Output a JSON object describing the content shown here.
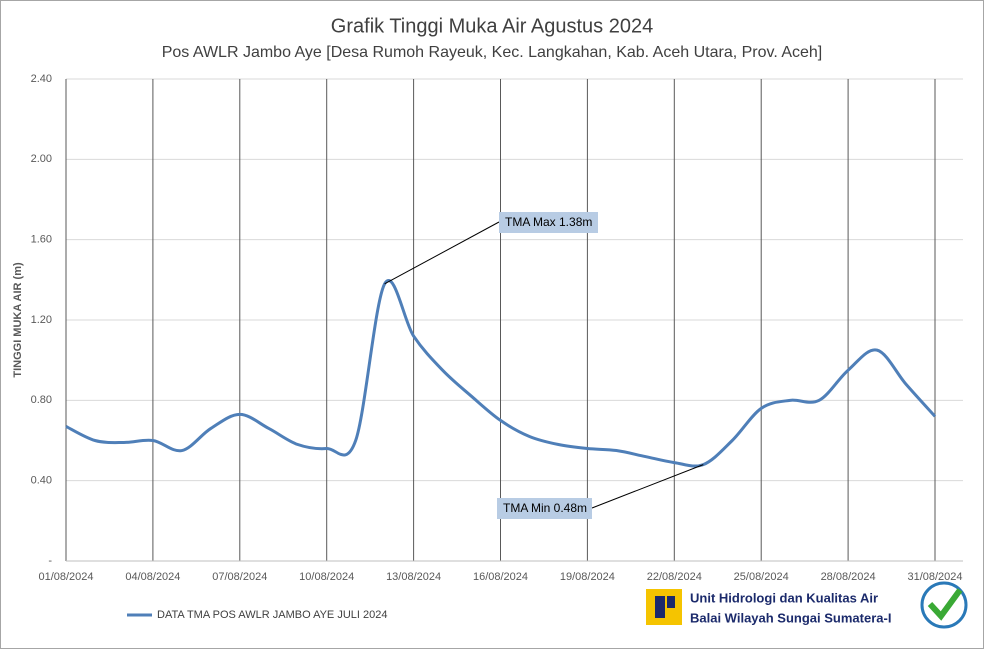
{
  "chart_data": {
    "type": "line",
    "title": "Grafik Tinggi Muka Air Agustus 2024",
    "subtitle": "Pos AWLR Jambo Aye [Desa Rumoh Rayeuk, Kec. Langkahan, Kab. Aceh Utara, Prov. Aceh]",
    "y_label": "TINGGI MUKA AIR (m)",
    "categories": [
      "01/08/2024",
      null,
      null,
      "04/08/2024",
      null,
      null,
      "07/08/2024",
      null,
      null,
      "10/08/2024",
      null,
      null,
      "13/08/2024",
      null,
      null,
      "16/08/2024",
      null,
      null,
      "19/08/2024",
      null,
      null,
      "22/08/2024",
      null,
      null,
      "25/08/2024",
      null,
      null,
      "28/08/2024",
      null,
      null,
      "31/08/2024"
    ],
    "series": [
      {
        "name": "DATA TMA POS AWLR JAMBO AYE JULI 2024",
        "color": "#4f7fb8",
        "values": [
          0.67,
          0.6,
          0.59,
          0.6,
          0.55,
          0.66,
          0.73,
          0.66,
          0.58,
          0.56,
          0.6,
          1.38,
          1.12,
          0.95,
          0.82,
          0.7,
          0.62,
          0.58,
          0.56,
          0.55,
          0.52,
          0.49,
          0.48,
          0.6,
          0.76,
          0.8,
          0.8,
          0.95,
          1.05,
          0.88,
          0.72
        ]
      }
    ],
    "ylim": [
      0,
      2.4
    ],
    "yticks": [
      {
        "value": 0,
        "label": "-"
      },
      {
        "value": 0.4,
        "label": "0.40"
      },
      {
        "value": 0.8,
        "label": "0.80"
      },
      {
        "value": 1.2,
        "label": "1.20"
      },
      {
        "value": 1.6,
        "label": "1.60"
      },
      {
        "value": 2.0,
        "label": "2.00"
      },
      {
        "value": 2.4,
        "label": "2.40"
      }
    ],
    "grid": true,
    "annotations": [
      "TMA Max 1.38m",
      "TMA Min 0.48m"
    ],
    "footer": [
      "Unit Hidrologi dan Kualitas Air",
      "Balai Wilayah Sungai Sumatera-I"
    ]
  }
}
